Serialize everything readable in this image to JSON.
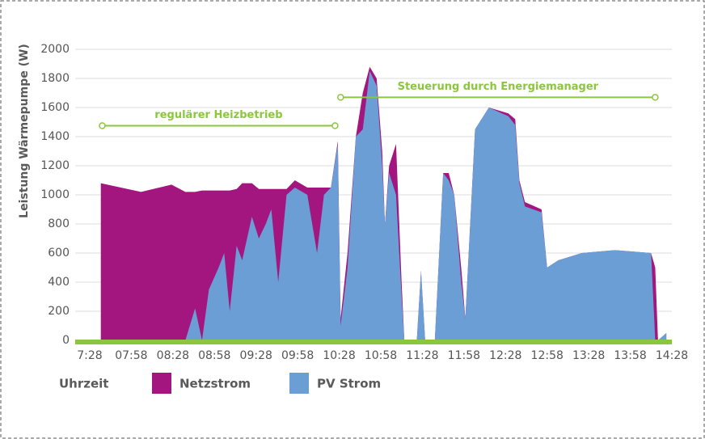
{
  "chart_data": {
    "type": "area",
    "ylabel": "Leistung Wärmepumpe (W)",
    "xlabel": "Uhrzeit",
    "x": [
      "07:36",
      "08:05",
      "08:27",
      "08:37",
      "08:44",
      "08:49",
      "08:54",
      "09:01",
      "09:05",
      "09:09",
      "09:14",
      "09:18",
      "09:25",
      "09:30",
      "09:35",
      "09:39",
      "09:44",
      "09:50",
      "09:56",
      "10:05",
      "10:12",
      "10:17",
      "10:22",
      "10:27",
      "10:29",
      "10:34",
      "10:40",
      "10:45",
      "10:50",
      "10:55",
      "10:59",
      "11:01",
      "11:04",
      "11:09",
      "11:13",
      "11:15",
      "11:24",
      "11:27",
      "11:30",
      "11:37",
      "11:43",
      "11:47",
      "11:51",
      "11:56",
      "11:59",
      "12:06",
      "12:16",
      "12:30",
      "12:35",
      "12:38",
      "12:42",
      "12:54",
      "12:58",
      "13:06",
      "13:23",
      "13:47",
      "14:13",
      "14:16",
      "14:18",
      "14:24"
    ],
    "series": [
      {
        "name": "Netzstrom",
        "color": "#a3167f",
        "values": [
          1080,
          1020,
          1070,
          1020,
          1020,
          1030,
          1030,
          1030,
          1030,
          1030,
          1040,
          1080,
          1080,
          1040,
          1040,
          1040,
          1040,
          1040,
          1100,
          1050,
          1050,
          1050,
          1050,
          1370,
          150,
          600,
          1400,
          1700,
          1880,
          1800,
          1300,
          800,
          1200,
          1350,
          400,
          0,
          0,
          480,
          0,
          0,
          1150,
          1150,
          1000,
          500,
          150,
          1450,
          1600,
          1560,
          1520,
          1100,
          950,
          900,
          500,
          550,
          600,
          620,
          600,
          500,
          0,
          50
        ]
      },
      {
        "name": "PV Strom",
        "color": "#6b9ed5",
        "values": [
          0,
          0,
          0,
          0,
          220,
          0,
          350,
          500,
          600,
          200,
          650,
          550,
          850,
          700,
          800,
          900,
          400,
          1000,
          1050,
          1000,
          600,
          1000,
          1050,
          1350,
          100,
          500,
          1400,
          1450,
          1850,
          1750,
          1200,
          800,
          1150,
          1000,
          300,
          0,
          0,
          480,
          0,
          0,
          1150,
          1100,
          1000,
          400,
          150,
          1450,
          1600,
          1540,
          1480,
          1080,
          920,
          880,
          500,
          550,
          600,
          620,
          600,
          0,
          0,
          50
        ]
      }
    ],
    "annotations": [
      {
        "text": "regulärer Heizbetrieb",
        "x": [
          "07:37",
          "10:25"
        ],
        "y": 1475
      },
      {
        "text": "Steuerung durch Energiemanager",
        "x": [
          "10:29",
          "14:16"
        ],
        "y": 1670
      }
    ],
    "annotation_color": "#8cc63f",
    "xlim": [
      "7:28",
      "14:28"
    ],
    "xticks": [
      "7:28",
      "07:58",
      "08:28",
      "08:58",
      "09:28",
      "09:58",
      "10:28",
      "10:58",
      "11:28",
      "11:58",
      "12:28",
      "12:58",
      "13:28",
      "13:58",
      "14:28"
    ],
    "ylim": [
      0,
      2000
    ],
    "yticks": [
      0,
      200,
      400,
      600,
      800,
      1000,
      1200,
      1400,
      1600,
      1800,
      2000
    ],
    "grid": true
  }
}
